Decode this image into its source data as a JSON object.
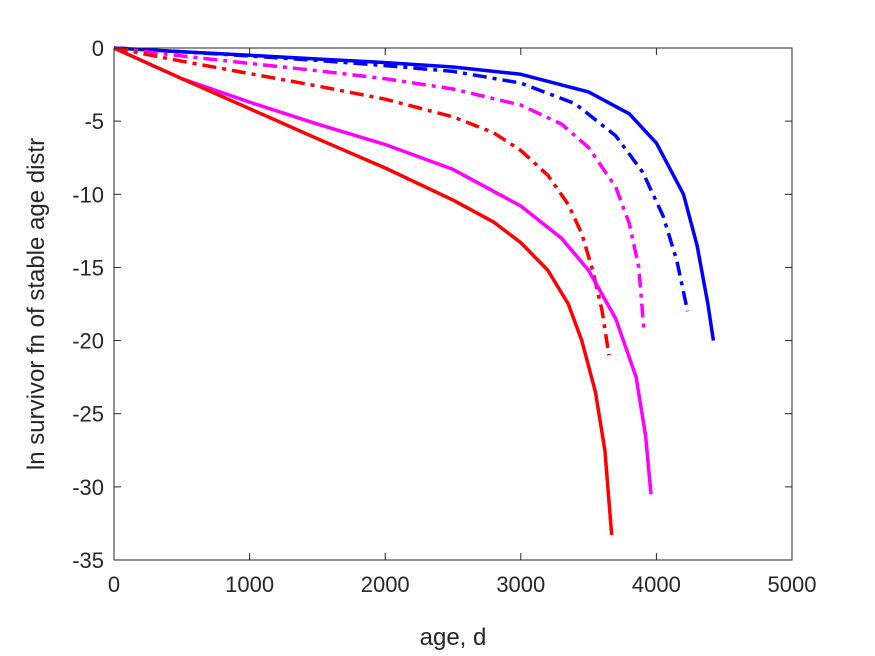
{
  "chart_data": {
    "type": "line",
    "title": "",
    "xlabel": "age, d",
    "ylabel": "ln survivor fn of stable age distr",
    "xlim": [
      0,
      5000
    ],
    "ylim": [
      -35,
      0
    ],
    "xticks": [
      "0",
      "1000",
      "2000",
      "3000",
      "4000",
      "5000"
    ],
    "yticks": [
      "0",
      "-5",
      "-10",
      "-15",
      "-20",
      "-25",
      "-30",
      "-35"
    ],
    "grid": false,
    "legend": "none",
    "series": [
      {
        "color": "#0000ff",
        "style": "solid",
        "points": [
          [
            0,
            0
          ],
          [
            500,
            -0.25
          ],
          [
            1000,
            -0.5
          ],
          [
            1500,
            -0.75
          ],
          [
            2000,
            -1.0
          ],
          [
            2500,
            -1.3
          ],
          [
            3000,
            -1.8
          ],
          [
            3500,
            -3.0
          ],
          [
            3800,
            -4.5
          ],
          [
            4000,
            -6.5
          ],
          [
            4200,
            -10.0
          ],
          [
            4300,
            -13.5
          ],
          [
            4380,
            -17.5
          ],
          [
            4420,
            -20.0
          ]
        ]
      },
      {
        "color": "#0000ff",
        "style": "dashdot",
        "points": [
          [
            0,
            0
          ],
          [
            500,
            -0.25
          ],
          [
            1000,
            -0.55
          ],
          [
            1500,
            -0.85
          ],
          [
            2000,
            -1.2
          ],
          [
            2500,
            -1.6
          ],
          [
            3000,
            -2.4
          ],
          [
            3400,
            -3.8
          ],
          [
            3700,
            -6.0
          ],
          [
            3900,
            -8.5
          ],
          [
            4050,
            -11.5
          ],
          [
            4150,
            -14.5
          ],
          [
            4230,
            -18.0
          ]
        ]
      },
      {
        "color": "#ff00ff",
        "style": "dashdot",
        "points": [
          [
            0,
            0
          ],
          [
            500,
            -0.55
          ],
          [
            1000,
            -1.05
          ],
          [
            1500,
            -1.55
          ],
          [
            2000,
            -2.1
          ],
          [
            2500,
            -2.8
          ],
          [
            3000,
            -3.9
          ],
          [
            3300,
            -5.2
          ],
          [
            3500,
            -6.8
          ],
          [
            3700,
            -9.5
          ],
          [
            3800,
            -12.0
          ],
          [
            3870,
            -15.0
          ],
          [
            3910,
            -19.5
          ]
        ]
      },
      {
        "color": "#ff0000",
        "style": "dashdot",
        "points": [
          [
            0,
            0
          ],
          [
            500,
            -0.9
          ],
          [
            1000,
            -1.75
          ],
          [
            1500,
            -2.6
          ],
          [
            2000,
            -3.5
          ],
          [
            2500,
            -4.7
          ],
          [
            2800,
            -5.8
          ],
          [
            3000,
            -7.0
          ],
          [
            3200,
            -8.7
          ],
          [
            3350,
            -10.7
          ],
          [
            3450,
            -12.7
          ],
          [
            3530,
            -15.2
          ],
          [
            3600,
            -18.0
          ],
          [
            3650,
            -21.0
          ]
        ]
      },
      {
        "color": "#ff00ff",
        "style": "solid",
        "points": [
          [
            0,
            0
          ],
          [
            500,
            -2.1
          ],
          [
            1000,
            -3.7
          ],
          [
            1500,
            -5.2
          ],
          [
            2000,
            -6.6
          ],
          [
            2500,
            -8.3
          ],
          [
            3000,
            -10.8
          ],
          [
            3300,
            -13.0
          ],
          [
            3500,
            -15.2
          ],
          [
            3700,
            -18.5
          ],
          [
            3850,
            -22.5
          ],
          [
            3920,
            -26.5
          ],
          [
            3960,
            -30.5
          ]
        ]
      },
      {
        "color": "#ff0000",
        "style": "solid",
        "points": [
          [
            0,
            0
          ],
          [
            500,
            -2.1
          ],
          [
            1000,
            -4.15
          ],
          [
            1500,
            -6.2
          ],
          [
            2000,
            -8.2
          ],
          [
            2500,
            -10.4
          ],
          [
            2800,
            -11.9
          ],
          [
            3000,
            -13.3
          ],
          [
            3200,
            -15.2
          ],
          [
            3350,
            -17.5
          ],
          [
            3450,
            -20.0
          ],
          [
            3550,
            -23.5
          ],
          [
            3620,
            -27.5
          ],
          [
            3670,
            -33.3
          ]
        ]
      }
    ]
  }
}
